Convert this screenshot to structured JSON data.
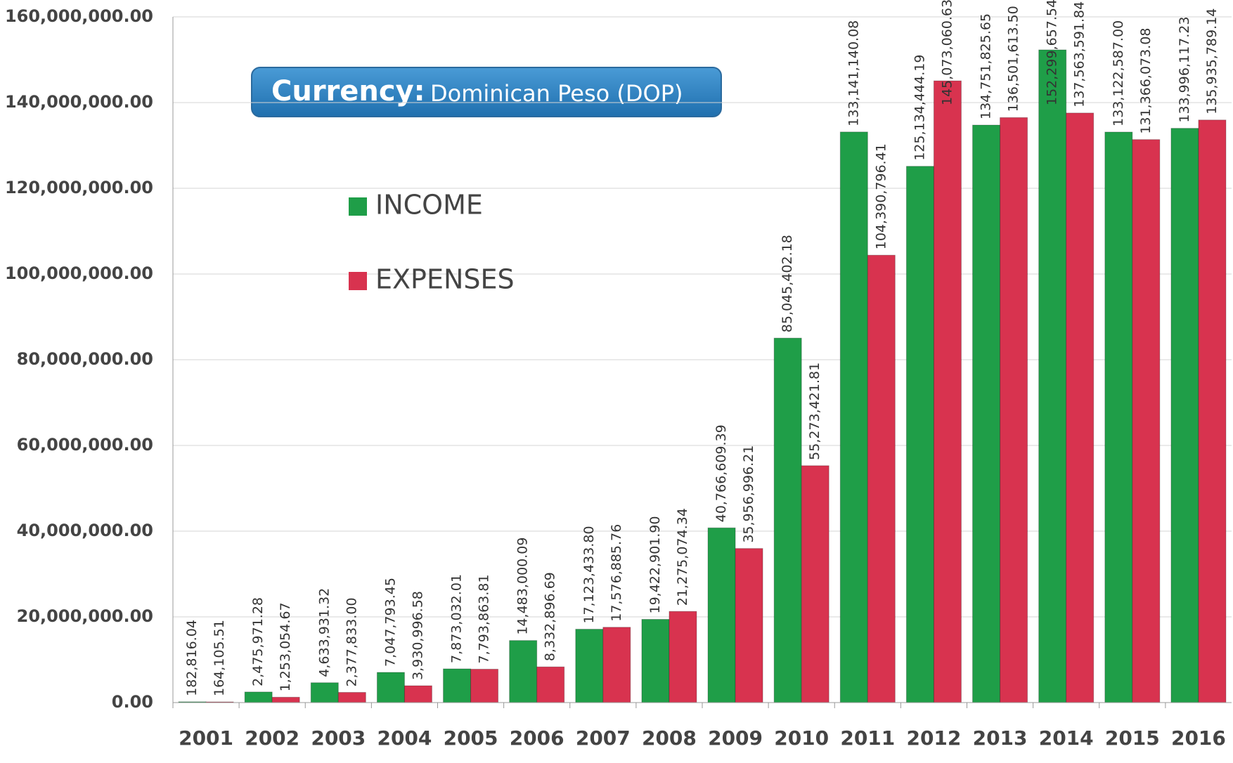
{
  "chart_data": {
    "type": "bar",
    "annotation": {
      "label": "Currency:",
      "text": "Dominican Peso (DOP)"
    },
    "categories": [
      "2001",
      "2002",
      "2003",
      "2004",
      "2005",
      "2006",
      "2007",
      "2008",
      "2009",
      "2010",
      "2011",
      "2012",
      "2013",
      "2014",
      "2015",
      "2016"
    ],
    "series": [
      {
        "name": "INCOME",
        "color": "#1f9e48",
        "values": [
          182816.04,
          2475971.28,
          4633931.32,
          7047793.45,
          7873032.01,
          14483000.09,
          17123433.8,
          19422901.9,
          40766609.39,
          85045402.18,
          133141140.08,
          125134444.19,
          134751825.65,
          152299657.54,
          133122587.0,
          133996117.23
        ],
        "value_labels": [
          "182,816.04",
          "2,475,971.28",
          "4,633,931.32",
          "7,047,793.45",
          "7,873,032.01",
          "14,483,000.09",
          "17,123,433.80",
          "19,422,901.90",
          "40,766,609.39",
          "85,045,402.18",
          "133,141,140.08",
          "125,134,444.19",
          "134,751,825.65",
          "152,299,657.54",
          "133,122,587.00",
          "133,996,117.23"
        ]
      },
      {
        "name": "EXPENSES",
        "color": "#d8334f",
        "values": [
          164105.51,
          1253054.67,
          2377833.0,
          3930996.58,
          7793863.81,
          8332896.69,
          17576885.76,
          21275074.34,
          35956996.21,
          55273421.81,
          104390796.41,
          145073060.63,
          136501613.5,
          137563591.84,
          131366073.08,
          135935789.14
        ],
        "value_labels": [
          "164,105.51",
          "1,253,054.67",
          "2,377,833.00",
          "3,930,996.58",
          "7,793,863.81",
          "8,332,896.69",
          "17,576,885.76",
          "21,275,074.34",
          "35,956,996.21",
          "55,273,421.81",
          "104,390,796.41",
          "145,073,060.63",
          "136,501,613.50",
          "137,563,591.84",
          "131,366,073.08",
          "135,935,789.14"
        ]
      }
    ],
    "ylim": [
      0,
      160000000
    ],
    "yticks": [
      {
        "value": 0,
        "label": "0.00"
      },
      {
        "value": 20000000,
        "label": "20,000,000.00"
      },
      {
        "value": 40000000,
        "label": "40,000,000.00"
      },
      {
        "value": 60000000,
        "label": "60,000,000.00"
      },
      {
        "value": 80000000,
        "label": "80,000,000.00"
      },
      {
        "value": 100000000,
        "label": "100,000,000.00"
      },
      {
        "value": 120000000,
        "label": "120,000,000.00"
      },
      {
        "value": 140000000,
        "label": "140,000,000.00"
      },
      {
        "value": 160000000,
        "label": "160,000,000.00"
      }
    ],
    "grid": true
  }
}
